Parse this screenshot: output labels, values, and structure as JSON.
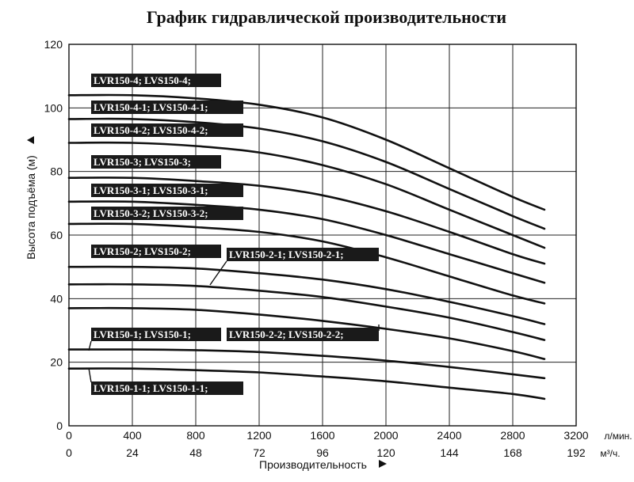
{
  "chart_data": {
    "type": "line",
    "title": "График гидравлической производительности",
    "xlabel": "Производительность",
    "ylabel": "Высота подъёма (м)",
    "xlim": [
      0,
      3200
    ],
    "ylim": [
      0,
      120
    ],
    "x_ticks": [
      0,
      400,
      800,
      1200,
      1600,
      2000,
      2400,
      2800,
      3200
    ],
    "x_ticks_secondary": [
      0,
      24,
      48,
      72,
      96,
      120,
      144,
      168,
      192
    ],
    "y_ticks": [
      0,
      20,
      40,
      60,
      80,
      100,
      120
    ],
    "x_unit": "л/мин.",
    "x_unit_secondary": "м³/ч.",
    "grid": true,
    "series": [
      {
        "name": "LVR150-4; LVS150-4;",
        "x": [
          0,
          400,
          800,
          1200,
          1600,
          2000,
          2400,
          2800,
          3000
        ],
        "y": [
          104,
          104,
          103,
          101,
          97,
          90,
          81,
          72,
          68
        ]
      },
      {
        "name": "LVR150-4-1; LVS150-4-1;",
        "x": [
          0,
          400,
          800,
          1200,
          1600,
          2000,
          2400,
          2800,
          3000
        ],
        "y": [
          96.5,
          96.5,
          95.5,
          93.5,
          89.5,
          83,
          74.5,
          66,
          62
        ]
      },
      {
        "name": "LVR150-4-2; LVS150-4-2;",
        "x": [
          0,
          400,
          800,
          1200,
          1600,
          2000,
          2400,
          2800,
          3000
        ],
        "y": [
          89,
          89,
          88,
          86,
          82,
          76,
          68,
          60,
          56
        ]
      },
      {
        "name": "LVR150-3; LVS150-3;",
        "x": [
          0,
          400,
          800,
          1200,
          1600,
          2000,
          2400,
          2800,
          3000
        ],
        "y": [
          78,
          78,
          77,
          75.5,
          72.5,
          67.5,
          61,
          54,
          51
        ]
      },
      {
        "name": "LVR150-3-1; LVS150-3-1;",
        "x": [
          0,
          400,
          800,
          1200,
          1600,
          2000,
          2400,
          2800,
          3000
        ],
        "y": [
          70.5,
          70.5,
          69.5,
          68,
          65,
          60,
          54,
          48,
          45
        ]
      },
      {
        "name": "LVR150-3-2; LVS150-3-2;",
        "x": [
          0,
          400,
          800,
          1200,
          1600,
          2000,
          2400,
          2800,
          3000
        ],
        "y": [
          63.5,
          63.5,
          62.5,
          61,
          58,
          53,
          47,
          41,
          38.5
        ]
      },
      {
        "name": "LVR150-2; LVS150-2;",
        "x": [
          0,
          400,
          800,
          1200,
          1600,
          2000,
          2400,
          2800,
          3000
        ],
        "y": [
          50,
          50,
          49.5,
          48,
          46,
          43,
          39,
          34.5,
          32
        ]
      },
      {
        "name": "LVR150-2-1; LVS150-2-1;",
        "x": [
          0,
          400,
          800,
          1200,
          1600,
          2000,
          2400,
          2800,
          3000
        ],
        "y": [
          44.5,
          44.5,
          44,
          42.5,
          40.5,
          37.5,
          34,
          29.5,
          27
        ]
      },
      {
        "name": "LVR150-2-2; LVS150-2-2;",
        "x": [
          0,
          400,
          800,
          1200,
          1600,
          2000,
          2400,
          2800,
          3000
        ],
        "y": [
          37,
          37,
          36.5,
          35,
          33,
          30.5,
          27.5,
          23.5,
          21
        ]
      },
      {
        "name": "LVR150-1; LVS150-1;",
        "x": [
          0,
          400,
          800,
          1200,
          1600,
          2000,
          2400,
          2800,
          3000
        ],
        "y": [
          24,
          24,
          23.8,
          23.2,
          22,
          20.5,
          18.5,
          16.2,
          15
        ]
      },
      {
        "name": "LVR150-1-1; LVS150-1-1;",
        "x": [
          0,
          400,
          800,
          1200,
          1600,
          2000,
          2400,
          2800,
          3000
        ],
        "y": [
          18,
          18,
          17.5,
          16.8,
          15.5,
          14,
          12,
          10,
          8.5
        ]
      }
    ]
  }
}
